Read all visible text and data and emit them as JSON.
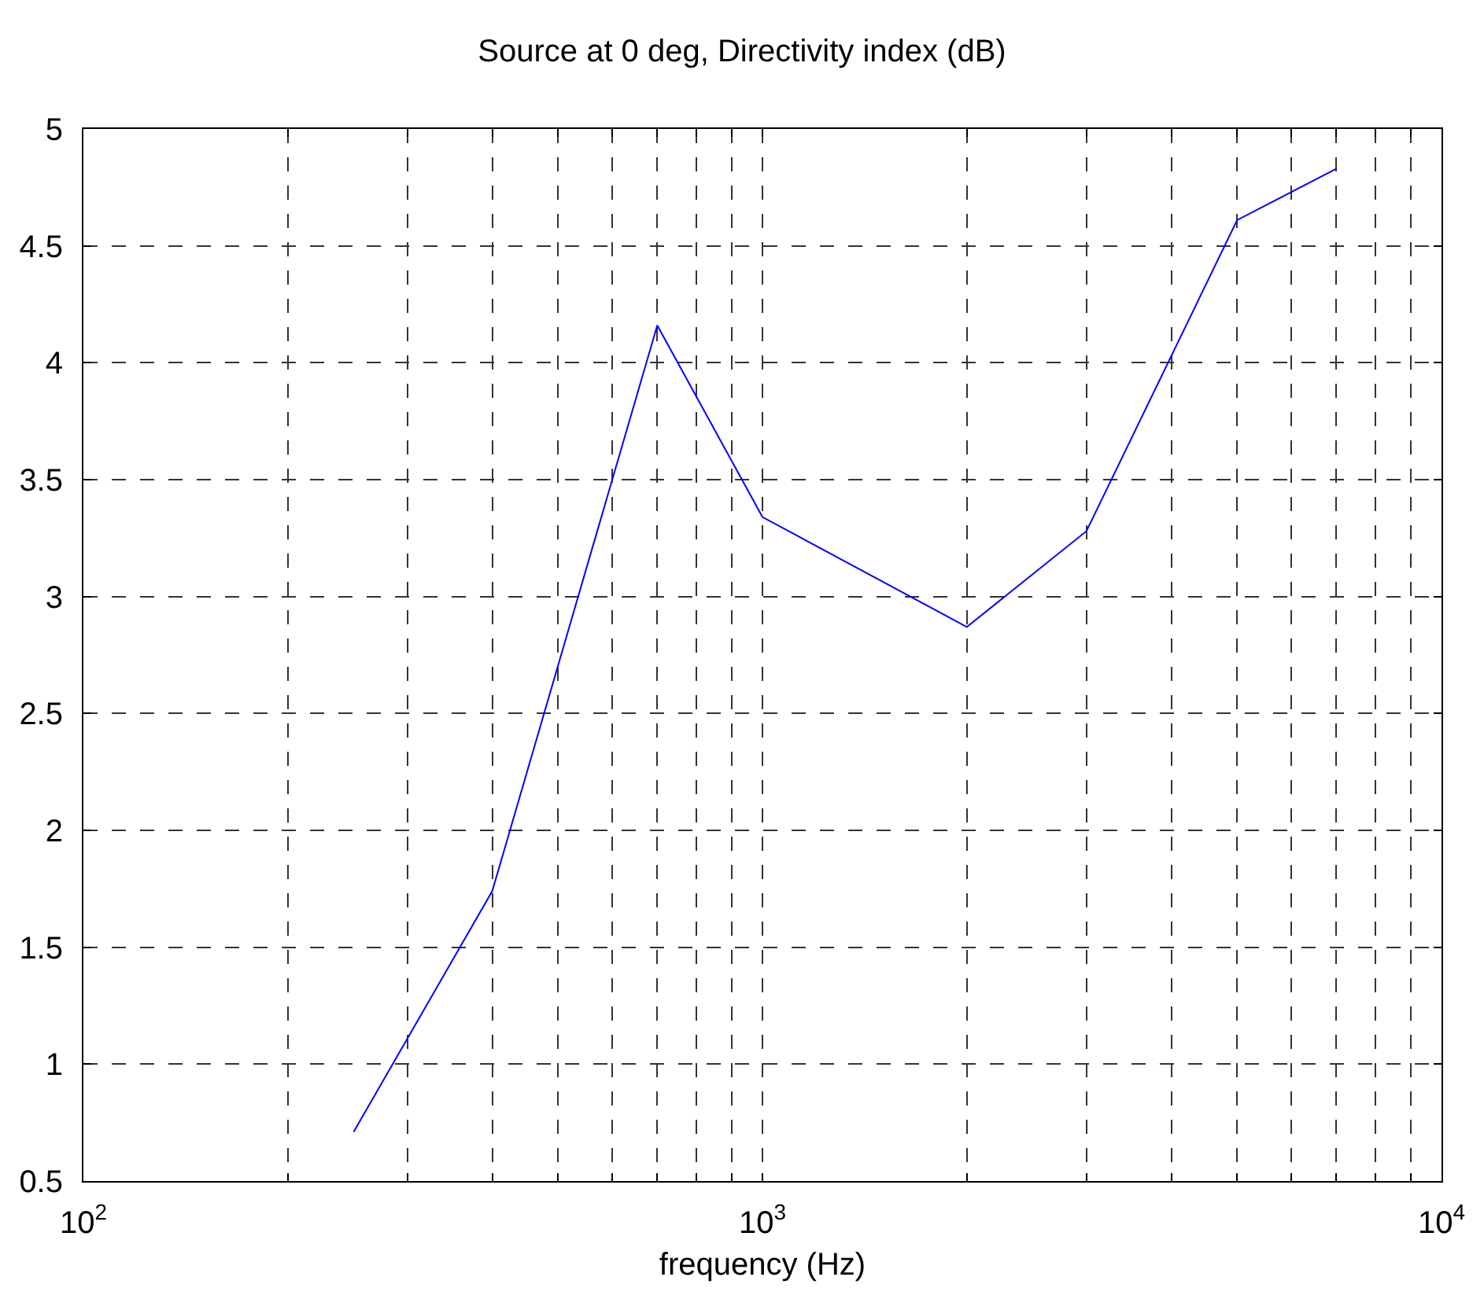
{
  "chart_data": {
    "type": "line",
    "title": "Source at 0 deg, Directivity index (dB)",
    "xlabel": "frequency (Hz)",
    "x": [
      250,
      400,
      700,
      1000,
      2000,
      3000,
      5000,
      7000
    ],
    "series": [
      {
        "color": "#0000ff",
        "values": [
          0.71,
          1.74,
          4.16,
          3.34,
          2.87,
          3.28,
          4.61,
          4.83
        ]
      }
    ],
    "log": "x",
    "xlim": [
      100,
      10000
    ],
    "xticks": [
      {
        "value": 100,
        "label": "10$^{2}$"
      },
      {
        "value": 200,
        "label": null
      },
      {
        "value": 300,
        "label": null
      },
      {
        "value": 400,
        "label": null
      },
      {
        "value": 500,
        "label": null
      },
      {
        "value": 600,
        "label": null
      },
      {
        "value": 700,
        "label": null
      },
      {
        "value": 800,
        "label": null
      },
      {
        "value": 900,
        "label": null
      },
      {
        "value": 1000,
        "label": "10$^{3}$"
      },
      {
        "value": 2000,
        "label": null
      },
      {
        "value": 3000,
        "label": null
      },
      {
        "value": 4000,
        "label": null
      },
      {
        "value": 5000,
        "label": null
      },
      {
        "value": 6000,
        "label": null
      },
      {
        "value": 7000,
        "label": null
      },
      {
        "value": 8000,
        "label": null
      },
      {
        "value": 9000,
        "label": null
      },
      {
        "value": 10000,
        "label": "10$^{4}$"
      }
    ],
    "ylim": [
      0.5,
      5
    ],
    "yticks": [
      0.5,
      1,
      1.5,
      2,
      2.5,
      3,
      3.5,
      4,
      4.5,
      5
    ],
    "grid": true,
    "marker": "none",
    "line_style": "solid"
  }
}
